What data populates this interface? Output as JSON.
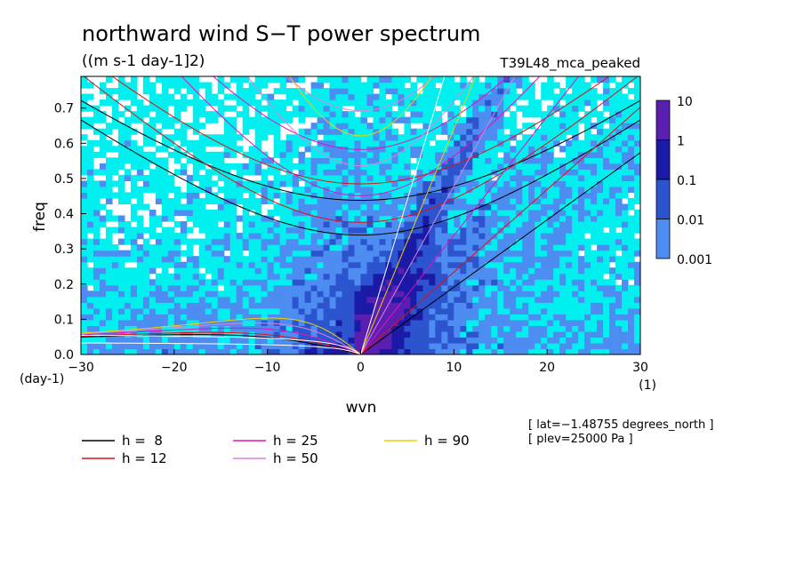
{
  "chart_data": {
    "type": "heatmap",
    "title": "northward wind S−T power spectrum",
    "subtitle": "((m s-1 day-1]2)",
    "run_label": "T39L48_mca_peaked",
    "xlabel": "wvn",
    "ylabel": "freq",
    "x_unit": "(1)",
    "y_unit": "(day-1)",
    "xlim": [
      -30,
      30
    ],
    "ylim": [
      0,
      0.79
    ],
    "x_ticks": [
      "−30",
      "−20",
      "−10",
      "0",
      "10",
      "20",
      "30"
    ],
    "y_ticks": [
      "0.0",
      "0.1",
      "0.2",
      "0.3",
      "0.4",
      "0.5",
      "0.6",
      "0.7"
    ],
    "colorbar": {
      "levels": [
        "10",
        "1",
        "0.1",
        "0.01",
        "0.001"
      ],
      "colors": [
        "#5a1fb0",
        "#1a1aa6",
        "#2c54cf",
        "#4d8cf0",
        "#00f0f0"
      ]
    },
    "equivalent_depth_lines": [
      {
        "label": "h =  8",
        "h": 8,
        "color": "#000000"
      },
      {
        "label": "h = 12",
        "h": 12,
        "color": "#e01010"
      },
      {
        "label": "h = 25",
        "h": 25,
        "color": "#e010c0"
      },
      {
        "label": "h = 50",
        "h": 50,
        "color": "#e080e0"
      },
      {
        "label": "h = 90",
        "h": 90,
        "color": "#f0d000"
      }
    ],
    "annotations": [
      "[ lat=−1.48755 degrees_north ]",
      "[ plev=25000 Pa ]"
    ],
    "grid": false,
    "legend_placement": "bottom-left"
  }
}
